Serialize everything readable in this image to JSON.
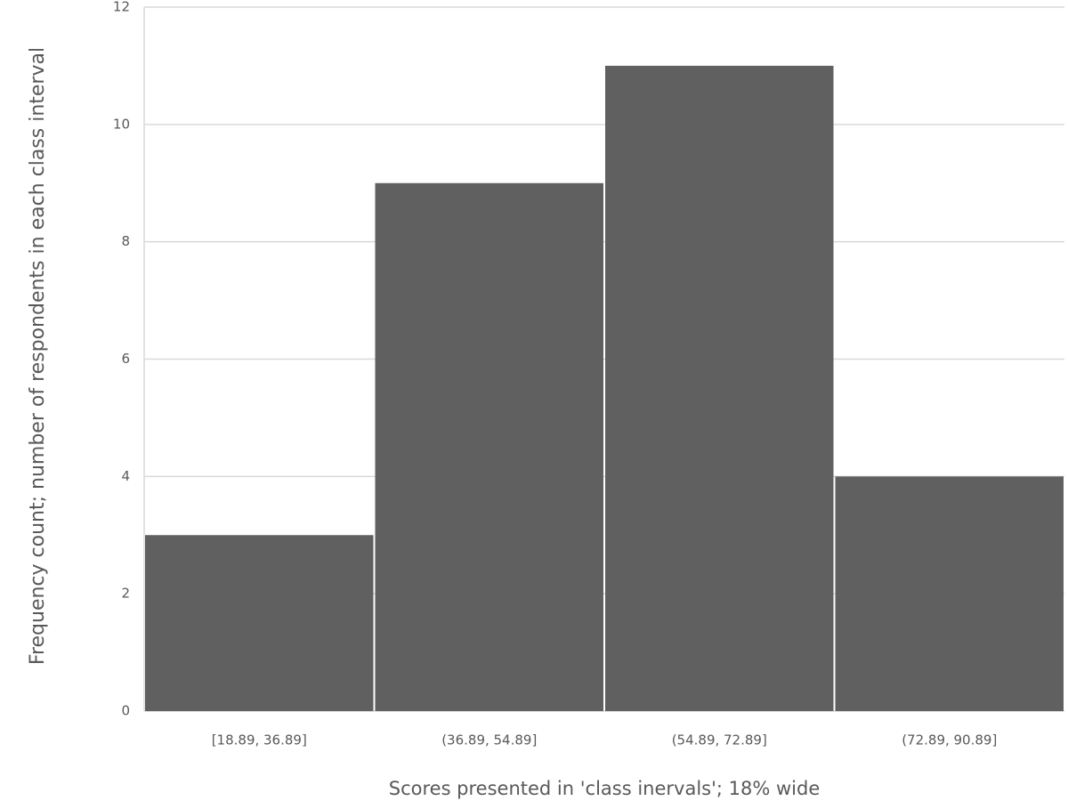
{
  "chart_data": {
    "type": "bar",
    "x_label": "Scores presented in 'class inervals'; 18% wide",
    "y_label": "Frequency count; number of respondents in each class interval",
    "categories": [
      "[18.89, 36.89]",
      "(36.89, 54.89]",
      "(54.89, 72.89]",
      "(72.89, 90.89]"
    ],
    "values": [
      3,
      9,
      11,
      4
    ],
    "color": "#606060",
    "ylim": [
      0,
      12
    ],
    "yticks": [
      0,
      2,
      4,
      6,
      8,
      10,
      12
    ],
    "grid": true
  }
}
